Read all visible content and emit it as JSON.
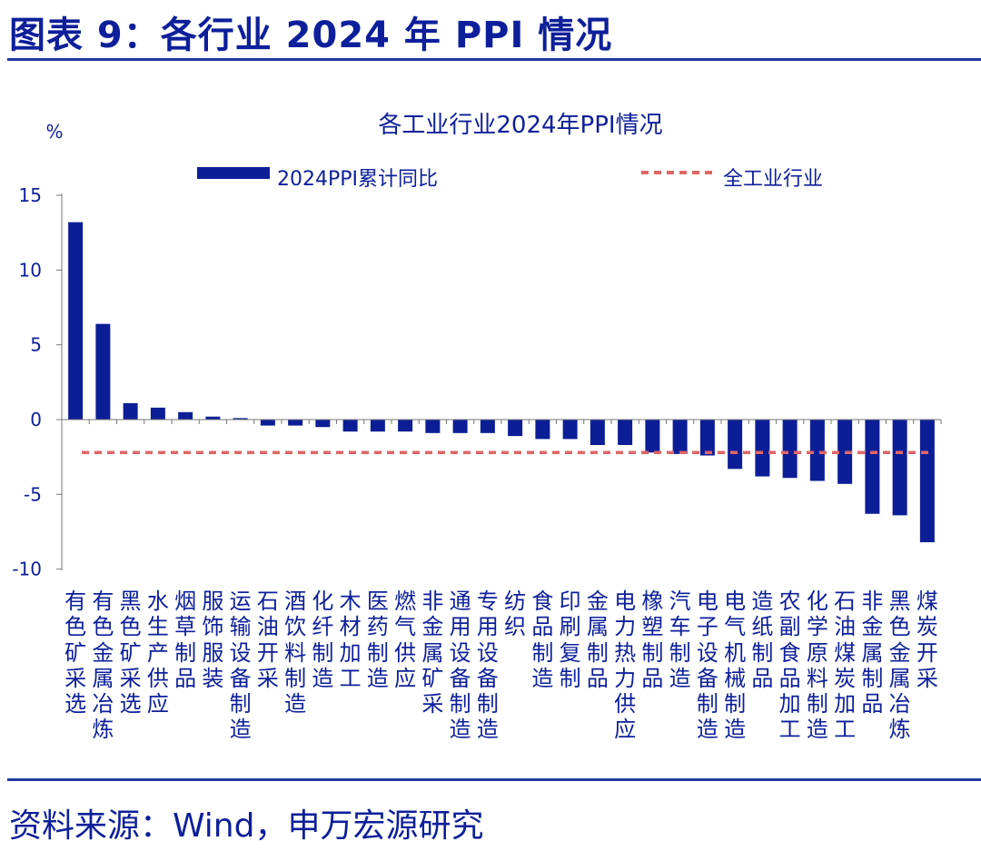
{
  "figure": {
    "title": "图表 9：各行业 2024 年 PPI 情况",
    "source": "资料来源：Wind，申万宏源研究"
  },
  "colors": {
    "bar": "#0c1e96",
    "ref_line": "#e06666",
    "text": "#0d1f9a"
  },
  "chart_data": {
    "type": "bar",
    "title": "各工业行业2024年PPI情况",
    "ylabel": "%",
    "xlabel": "",
    "ylim": [
      -10,
      15
    ],
    "yticks": [
      15,
      10,
      5,
      0,
      -5,
      -10
    ],
    "legend": {
      "placement": "top",
      "series_label": "2024PPI累计同比",
      "ref_label": "全工业行业"
    },
    "reference_line": {
      "name": "全工业行业",
      "value": -2.2
    },
    "categories": [
      "有色矿采选",
      "有色金属冶炼",
      "黑色矿采选",
      "水生产供应",
      "烟草制品",
      "服饰服装",
      "运输设备制造",
      "石油开采",
      "酒饮料制造",
      "化纤制造",
      "木材加工",
      "医药制造",
      "燃气供应",
      "非金属矿采",
      "通用设备制造",
      "专用设备制造",
      "纺织",
      "食品制造",
      "印刷复制",
      "金属制品",
      "电力热力供应",
      "橡塑制品",
      "汽车制造",
      "电子设备制造",
      "电气机械制造",
      "造纸制品",
      "农副食品加工",
      "化学原料制造",
      "石油煤炭加工",
      "非金属制品",
      "黑色金属冶炼",
      "煤炭开采"
    ],
    "series": [
      {
        "name": "2024PPI累计同比",
        "values": [
          13.2,
          6.4,
          1.1,
          0.8,
          0.5,
          0.2,
          0.1,
          -0.4,
          -0.4,
          -0.5,
          -0.8,
          -0.8,
          -0.8,
          -0.9,
          -0.9,
          -0.9,
          -1.1,
          -1.3,
          -1.3,
          -1.7,
          -1.7,
          -2.2,
          -2.3,
          -2.4,
          -3.3,
          -3.8,
          -3.9,
          -4.1,
          -4.3,
          -6.3,
          -6.4,
          -8.2
        ]
      }
    ]
  }
}
